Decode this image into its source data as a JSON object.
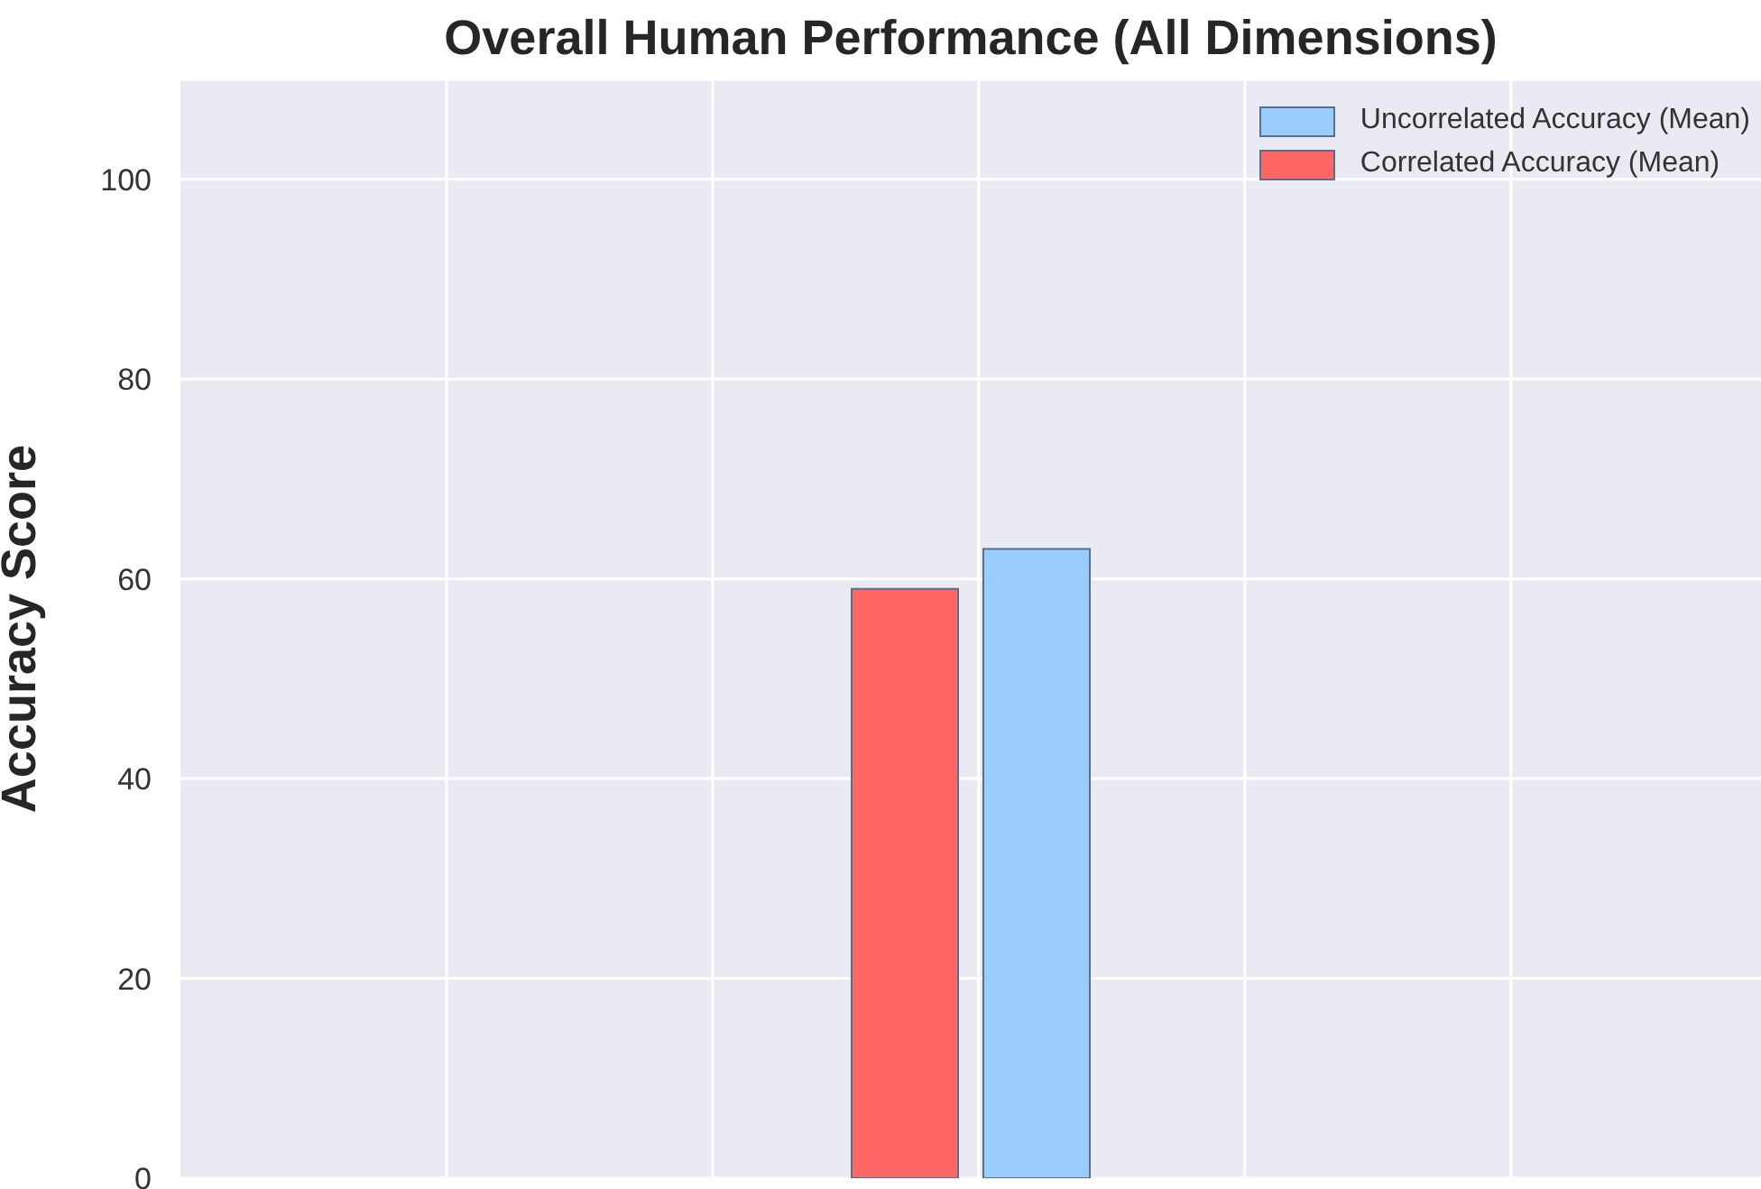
{
  "chart_data": {
    "type": "bar",
    "title": "Overall Human Performance (All Dimensions)",
    "ylabel": "Accuracy Score",
    "categories": [
      null
    ],
    "series": [
      {
        "name": "Correlated Accuracy (Mean)",
        "color": "#ff6666",
        "values": [
          59
        ]
      },
      {
        "name": "Uncorrelated Accuracy (Mean)",
        "color": "#99ccff",
        "values": [
          63
        ]
      }
    ],
    "ylim": [
      0,
      110
    ],
    "yticks": [
      0,
      20,
      40,
      60,
      80,
      100
    ],
    "grid": true,
    "legend": "top right"
  }
}
